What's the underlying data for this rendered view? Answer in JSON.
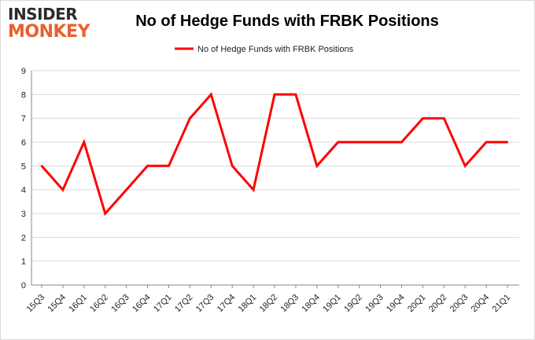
{
  "logo": {
    "line1": "INSIDER",
    "line2": "MONKEY"
  },
  "colors": {
    "line": "#ff0000",
    "grid": "#d9d9d9",
    "logo_accent": "#e8602c"
  },
  "chart_data": {
    "type": "line",
    "title": "No of Hedge Funds with FRBK Positions",
    "xlabel": "",
    "ylabel": "",
    "ylim": [
      0,
      9
    ],
    "yticks": [
      0,
      1,
      2,
      3,
      4,
      5,
      6,
      7,
      8,
      9
    ],
    "grid": "horizontal",
    "legend_position": "top-center",
    "categories": [
      "15Q3",
      "15Q4",
      "16Q1",
      "16Q2",
      "16Q3",
      "16Q4",
      "17Q1",
      "17Q2",
      "17Q3",
      "17Q4",
      "18Q1",
      "18Q2",
      "18Q3",
      "18Q4",
      "19Q1",
      "19Q2",
      "19Q3",
      "19Q4",
      "20Q1",
      "20Q2",
      "20Q3",
      "20Q4",
      "21Q1"
    ],
    "series": [
      {
        "name": "No of Hedge Funds with FRBK Positions",
        "values": [
          5,
          4,
          6,
          3,
          4,
          5,
          5,
          7,
          8,
          5,
          4,
          8,
          8,
          5,
          6,
          6,
          6,
          6,
          7,
          7,
          5,
          6,
          6
        ]
      }
    ]
  }
}
